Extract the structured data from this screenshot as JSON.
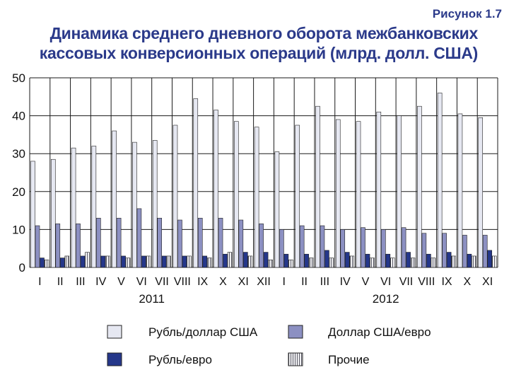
{
  "figure_label": "Рисунок 1.7",
  "title_line1": "Динамика среднего дневного оборота межбанковских",
  "title_line2": "кассовых конверсионных операций (млрд. долл. США)",
  "colors": {
    "rub_usd": "#e6e8f2",
    "usd_eur": "#8c90c2",
    "rub_eur": "#25378a",
    "other": "#cfd0d6",
    "title": "#2b3a8a"
  },
  "chart_data": {
    "type": "bar",
    "ylim": [
      0,
      50
    ],
    "yticks": [
      0,
      10,
      20,
      30,
      40,
      50
    ],
    "grid": true,
    "categories": [
      "I",
      "II",
      "III",
      "IV",
      "V",
      "VI",
      "VII",
      "VIII",
      "IX",
      "X",
      "XI",
      "XII",
      "I",
      "II",
      "III",
      "IV",
      "V",
      "VI",
      "VII",
      "VIII",
      "IX",
      "X",
      "XI"
    ],
    "year_groups": [
      {
        "label": "2011",
        "start": 0,
        "end": 11
      },
      {
        "label": "2012",
        "start": 12,
        "end": 22
      }
    ],
    "series": [
      {
        "name": "Рубль/доллар США",
        "key": "rub_usd",
        "values": [
          28,
          28.5,
          31.5,
          32,
          36,
          33,
          33.5,
          37.5,
          44.5,
          41.5,
          38.5,
          37,
          30.5,
          37.5,
          42.5,
          39,
          38.5,
          41,
          40,
          42.5,
          46,
          40.5,
          39.5
        ]
      },
      {
        "name": "Доллар США/евро",
        "key": "usd_eur",
        "values": [
          11,
          11.5,
          11.5,
          13,
          13,
          15.5,
          13,
          12.5,
          13,
          13,
          12.5,
          11.5,
          10,
          11,
          11,
          10,
          10.5,
          10,
          10.5,
          9,
          9,
          8.5,
          8.5
        ]
      },
      {
        "name": "Рубль/евро",
        "key": "rub_eur",
        "values": [
          2.5,
          2.5,
          3,
          3,
          3,
          3,
          3,
          3,
          3,
          3.5,
          4,
          4,
          3.5,
          3.5,
          4.5,
          4,
          3.5,
          3.5,
          4,
          3.5,
          4,
          3.5,
          4.5
        ]
      },
      {
        "name": "Прочие",
        "key": "other",
        "values": [
          2,
          3,
          4,
          3,
          2.5,
          3,
          3,
          3,
          2.5,
          4,
          3,
          2,
          2,
          2.5,
          2.5,
          3,
          2.5,
          2.5,
          2.5,
          2.5,
          3,
          3,
          3
        ]
      }
    ]
  }
}
